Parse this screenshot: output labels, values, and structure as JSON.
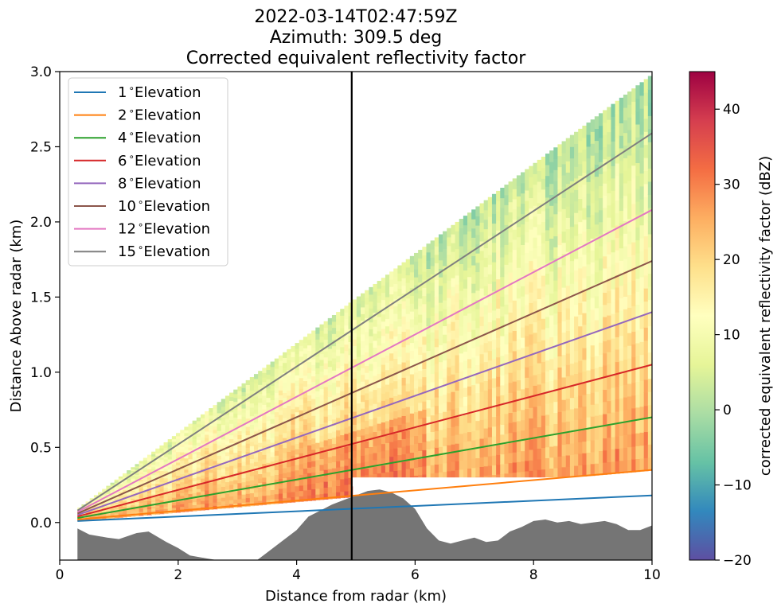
{
  "chart_data": {
    "type": "line",
    "title_lines": [
      "2022-03-14T02:47:59Z",
      "Azimuth: 309.5 deg",
      "Corrected equivalent reflectivity factor"
    ],
    "xlabel": "Distance from radar (km)",
    "ylabel": "Distance Above radar  (km)",
    "xlim": [
      0,
      10
    ],
    "ylim": [
      -0.25,
      3.0
    ],
    "xticks": [
      0,
      2,
      4,
      6,
      8,
      10
    ],
    "yticks": [
      0.0,
      0.5,
      1.0,
      1.5,
      2.0,
      2.5,
      3.0
    ],
    "xtick_labels": [
      "0",
      "2",
      "4",
      "6",
      "8",
      "10"
    ],
    "ytick_labels": [
      "0.0",
      "0.5",
      "1.0",
      "1.5",
      "2.0",
      "2.5",
      "3.0"
    ],
    "legend_position": "top-left",
    "series": [
      {
        "name": "1$^\\circ$Elevation",
        "label_number": "1",
        "label_suffix": "Elevation",
        "color": "#1f77b4",
        "x": [
          0.3,
          10
        ],
        "y": [
          0.01,
          0.18
        ]
      },
      {
        "name": "2$^\\circ$Elevation",
        "label_number": "2",
        "label_suffix": "Elevation",
        "color": "#ff7f0e",
        "x": [
          0.3,
          10
        ],
        "y": [
          0.02,
          0.35
        ]
      },
      {
        "name": "4$^\\circ$Elevation",
        "label_number": "4",
        "label_suffix": "Elevation",
        "color": "#2ca02c",
        "x": [
          0.3,
          10
        ],
        "y": [
          0.03,
          0.7
        ]
      },
      {
        "name": "6$^\\circ$Elevation",
        "label_number": "6",
        "label_suffix": "Elevation",
        "color": "#d62728",
        "x": [
          0.3,
          10
        ],
        "y": [
          0.04,
          1.05
        ]
      },
      {
        "name": "8$^\\circ$Elevation",
        "label_number": "8",
        "label_suffix": "Elevation",
        "color": "#9467bd",
        "x": [
          0.3,
          10
        ],
        "y": [
          0.05,
          1.4
        ]
      },
      {
        "name": "10$^\\circ$Elevation",
        "label_number": "10",
        "label_suffix": "Elevation",
        "color": "#8c564b",
        "x": [
          0.3,
          10
        ],
        "y": [
          0.06,
          1.74
        ]
      },
      {
        "name": "12$^\\circ$Elevation",
        "label_number": "12",
        "label_suffix": "Elevation",
        "color": "#e377c2",
        "x": [
          0.3,
          10
        ],
        "y": [
          0.07,
          2.08
        ]
      },
      {
        "name": "15$^\\circ$Elevation",
        "label_number": "15",
        "label_suffix": "Elevation",
        "color": "#7f7f7f",
        "x": [
          0.3,
          10
        ],
        "y": [
          0.08,
          2.59
        ]
      }
    ],
    "vertical_line": {
      "x": 4.93,
      "color": "#000000"
    },
    "terrain": {
      "color": "#757575",
      "x": [
        0.3,
        0.5,
        0.8,
        1.0,
        1.3,
        1.5,
        1.8,
        2.0,
        2.2,
        2.5,
        2.8,
        3.0,
        3.3,
        3.5,
        3.7,
        4.0,
        4.2,
        4.4,
        4.6,
        4.8,
        5.0,
        5.2,
        5.4,
        5.6,
        5.8,
        6.0,
        6.2,
        6.4,
        6.6,
        6.8,
        7.0,
        7.2,
        7.4,
        7.6,
        7.8,
        8.0,
        8.2,
        8.4,
        8.6,
        8.8,
        9.0,
        9.2,
        9.4,
        9.6,
        9.8,
        10.0
      ],
      "y": [
        -0.04,
        -0.08,
        -0.1,
        -0.11,
        -0.07,
        -0.06,
        -0.13,
        -0.17,
        -0.22,
        -0.24,
        -0.26,
        -0.27,
        -0.26,
        -0.2,
        -0.14,
        -0.05,
        0.04,
        0.08,
        0.12,
        0.15,
        0.18,
        0.21,
        0.22,
        0.2,
        0.16,
        0.09,
        -0.04,
        -0.12,
        -0.14,
        -0.12,
        -0.1,
        -0.13,
        -0.12,
        -0.06,
        -0.03,
        0.01,
        0.02,
        0.0,
        0.01,
        -0.01,
        0.0,
        0.01,
        -0.01,
        -0.05,
        -0.05,
        -0.02
      ]
    },
    "colorbar": {
      "label": "corrected equivalent reflectivity factor (dBZ)",
      "min": -20,
      "max": 45,
      "ticks": [
        -20,
        -10,
        0,
        10,
        20,
        30,
        40
      ],
      "tick_labels": [
        "−20",
        "−10",
        "0",
        "10",
        "20",
        "30",
        "40"
      ],
      "colormap": "Spectral_r",
      "colormap_stops": [
        "#5e4fa2",
        "#3288bd",
        "#66c2a5",
        "#abdda4",
        "#e6f598",
        "#ffffbf",
        "#fee08b",
        "#fdae61",
        "#f46d43",
        "#d53e4f",
        "#9e0142"
      ]
    },
    "field": {
      "x_start": 0.3,
      "x_end": 10,
      "top_elevation_deg": 16.6,
      "bottom_elevation_deg": 2.0,
      "white_gap_y_bottom": [
        0.24,
        0.19
      ],
      "white_gap_y_top": [
        0.3,
        0.25
      ]
    }
  }
}
